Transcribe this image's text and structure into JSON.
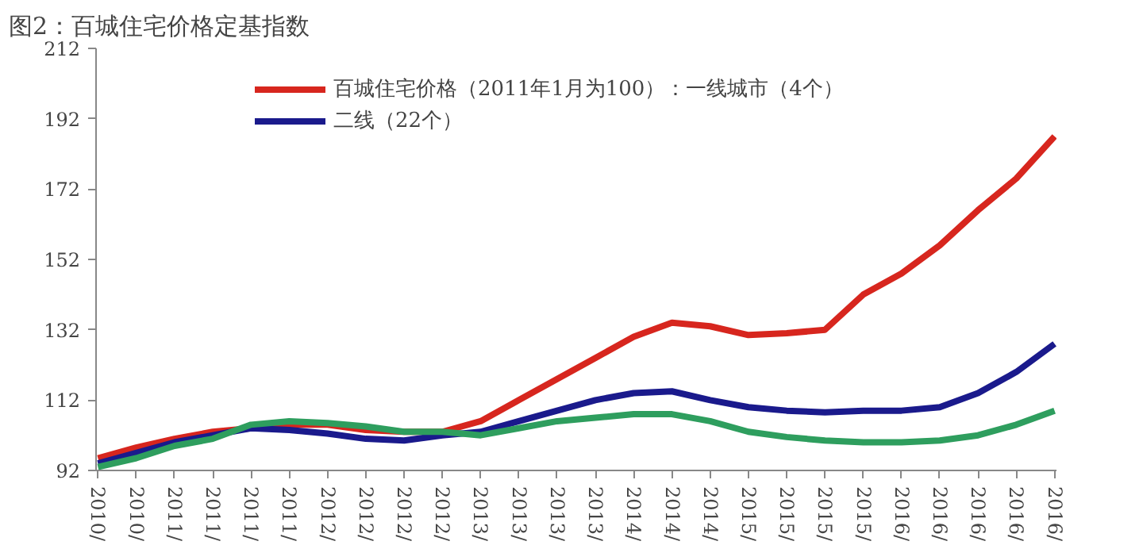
{
  "chart_data": {
    "type": "line",
    "title": "图2：百城住宅价格定基指数",
    "categories": [
      "2010/",
      "2010/",
      "2011/",
      "2011/",
      "2011/",
      "2011/",
      "2012/",
      "2012/",
      "2012/",
      "2012/",
      "2013/",
      "2013/",
      "2013/",
      "2013/",
      "2014/",
      "2014/",
      "2014/",
      "2015/",
      "2015/",
      "2015/",
      "2015/",
      "2016/",
      "2016/",
      "2016/",
      "2016/",
      "2016/"
    ],
    "series": [
      {
        "name": "百城住宅价格（2011年1月为100）：一线城市（4个）",
        "color": "#d7261e",
        "values": [
          95.5,
          98.5,
          101,
          103,
          104,
          105,
          105,
          103.5,
          103,
          103,
          106,
          112,
          118,
          124,
          130,
          134,
          133,
          130.5,
          131,
          132,
          142,
          148,
          156,
          166,
          175,
          187
        ]
      },
      {
        "name": "二线（22个）",
        "color": "#1a1a8c",
        "values": [
          94,
          97,
          100,
          102,
          104,
          103.5,
          102.5,
          101,
          100.5,
          102,
          103,
          106,
          109,
          112,
          114,
          114.5,
          112,
          110,
          109,
          108.5,
          109,
          109,
          110,
          114,
          120,
          128
        ]
      },
      {
        "color": "#2e9e5e",
        "values": [
          93,
          95.5,
          99,
          101,
          105,
          106,
          105.5,
          104.5,
          103,
          103,
          102,
          104,
          106,
          107,
          108,
          108,
          106,
          103,
          101.5,
          100.5,
          100,
          100,
          100.5,
          102,
          105,
          109
        ]
      }
    ],
    "ylim": [
      92,
      212
    ],
    "yticks": [
      92,
      112,
      132,
      152,
      172,
      192,
      212
    ],
    "grid": false,
    "legend": "top",
    "marker": "none",
    "line_style": "solid"
  }
}
